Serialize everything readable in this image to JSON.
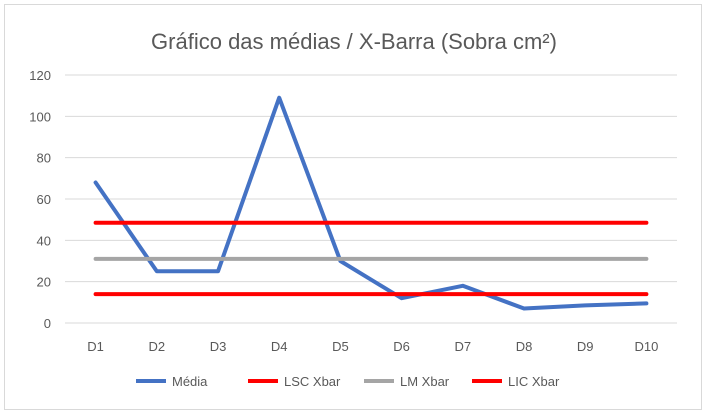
{
  "chart_data": {
    "type": "line",
    "title": "Gráfico das médias / X-Barra (Sobra cm²)",
    "categories": [
      "D1",
      "D2",
      "D3",
      "D4",
      "D5",
      "D6",
      "D7",
      "D8",
      "D9",
      "D10"
    ],
    "ylim": [
      0,
      120
    ],
    "yticks": [
      0,
      20,
      40,
      60,
      80,
      100,
      120
    ],
    "grid": true,
    "legend_position": "bottom",
    "series": [
      {
        "name": "Média",
        "color": "#4472c4",
        "values": [
          68,
          25,
          25,
          109,
          30,
          12,
          18,
          7,
          8.5,
          9.5
        ]
      },
      {
        "name": "LSC Xbar",
        "color": "#ff0000",
        "values": [
          48.5,
          48.5,
          48.5,
          48.5,
          48.5,
          48.5,
          48.5,
          48.5,
          48.5,
          48.5
        ]
      },
      {
        "name": "LM Xbar",
        "color": "#a5a5a5",
        "values": [
          31,
          31,
          31,
          31,
          31,
          31,
          31,
          31,
          31,
          31
        ]
      },
      {
        "name": "LIC Xbar",
        "color": "#ff0000",
        "values": [
          14,
          14,
          14,
          14,
          14,
          14,
          14,
          14,
          14,
          14
        ]
      }
    ]
  }
}
